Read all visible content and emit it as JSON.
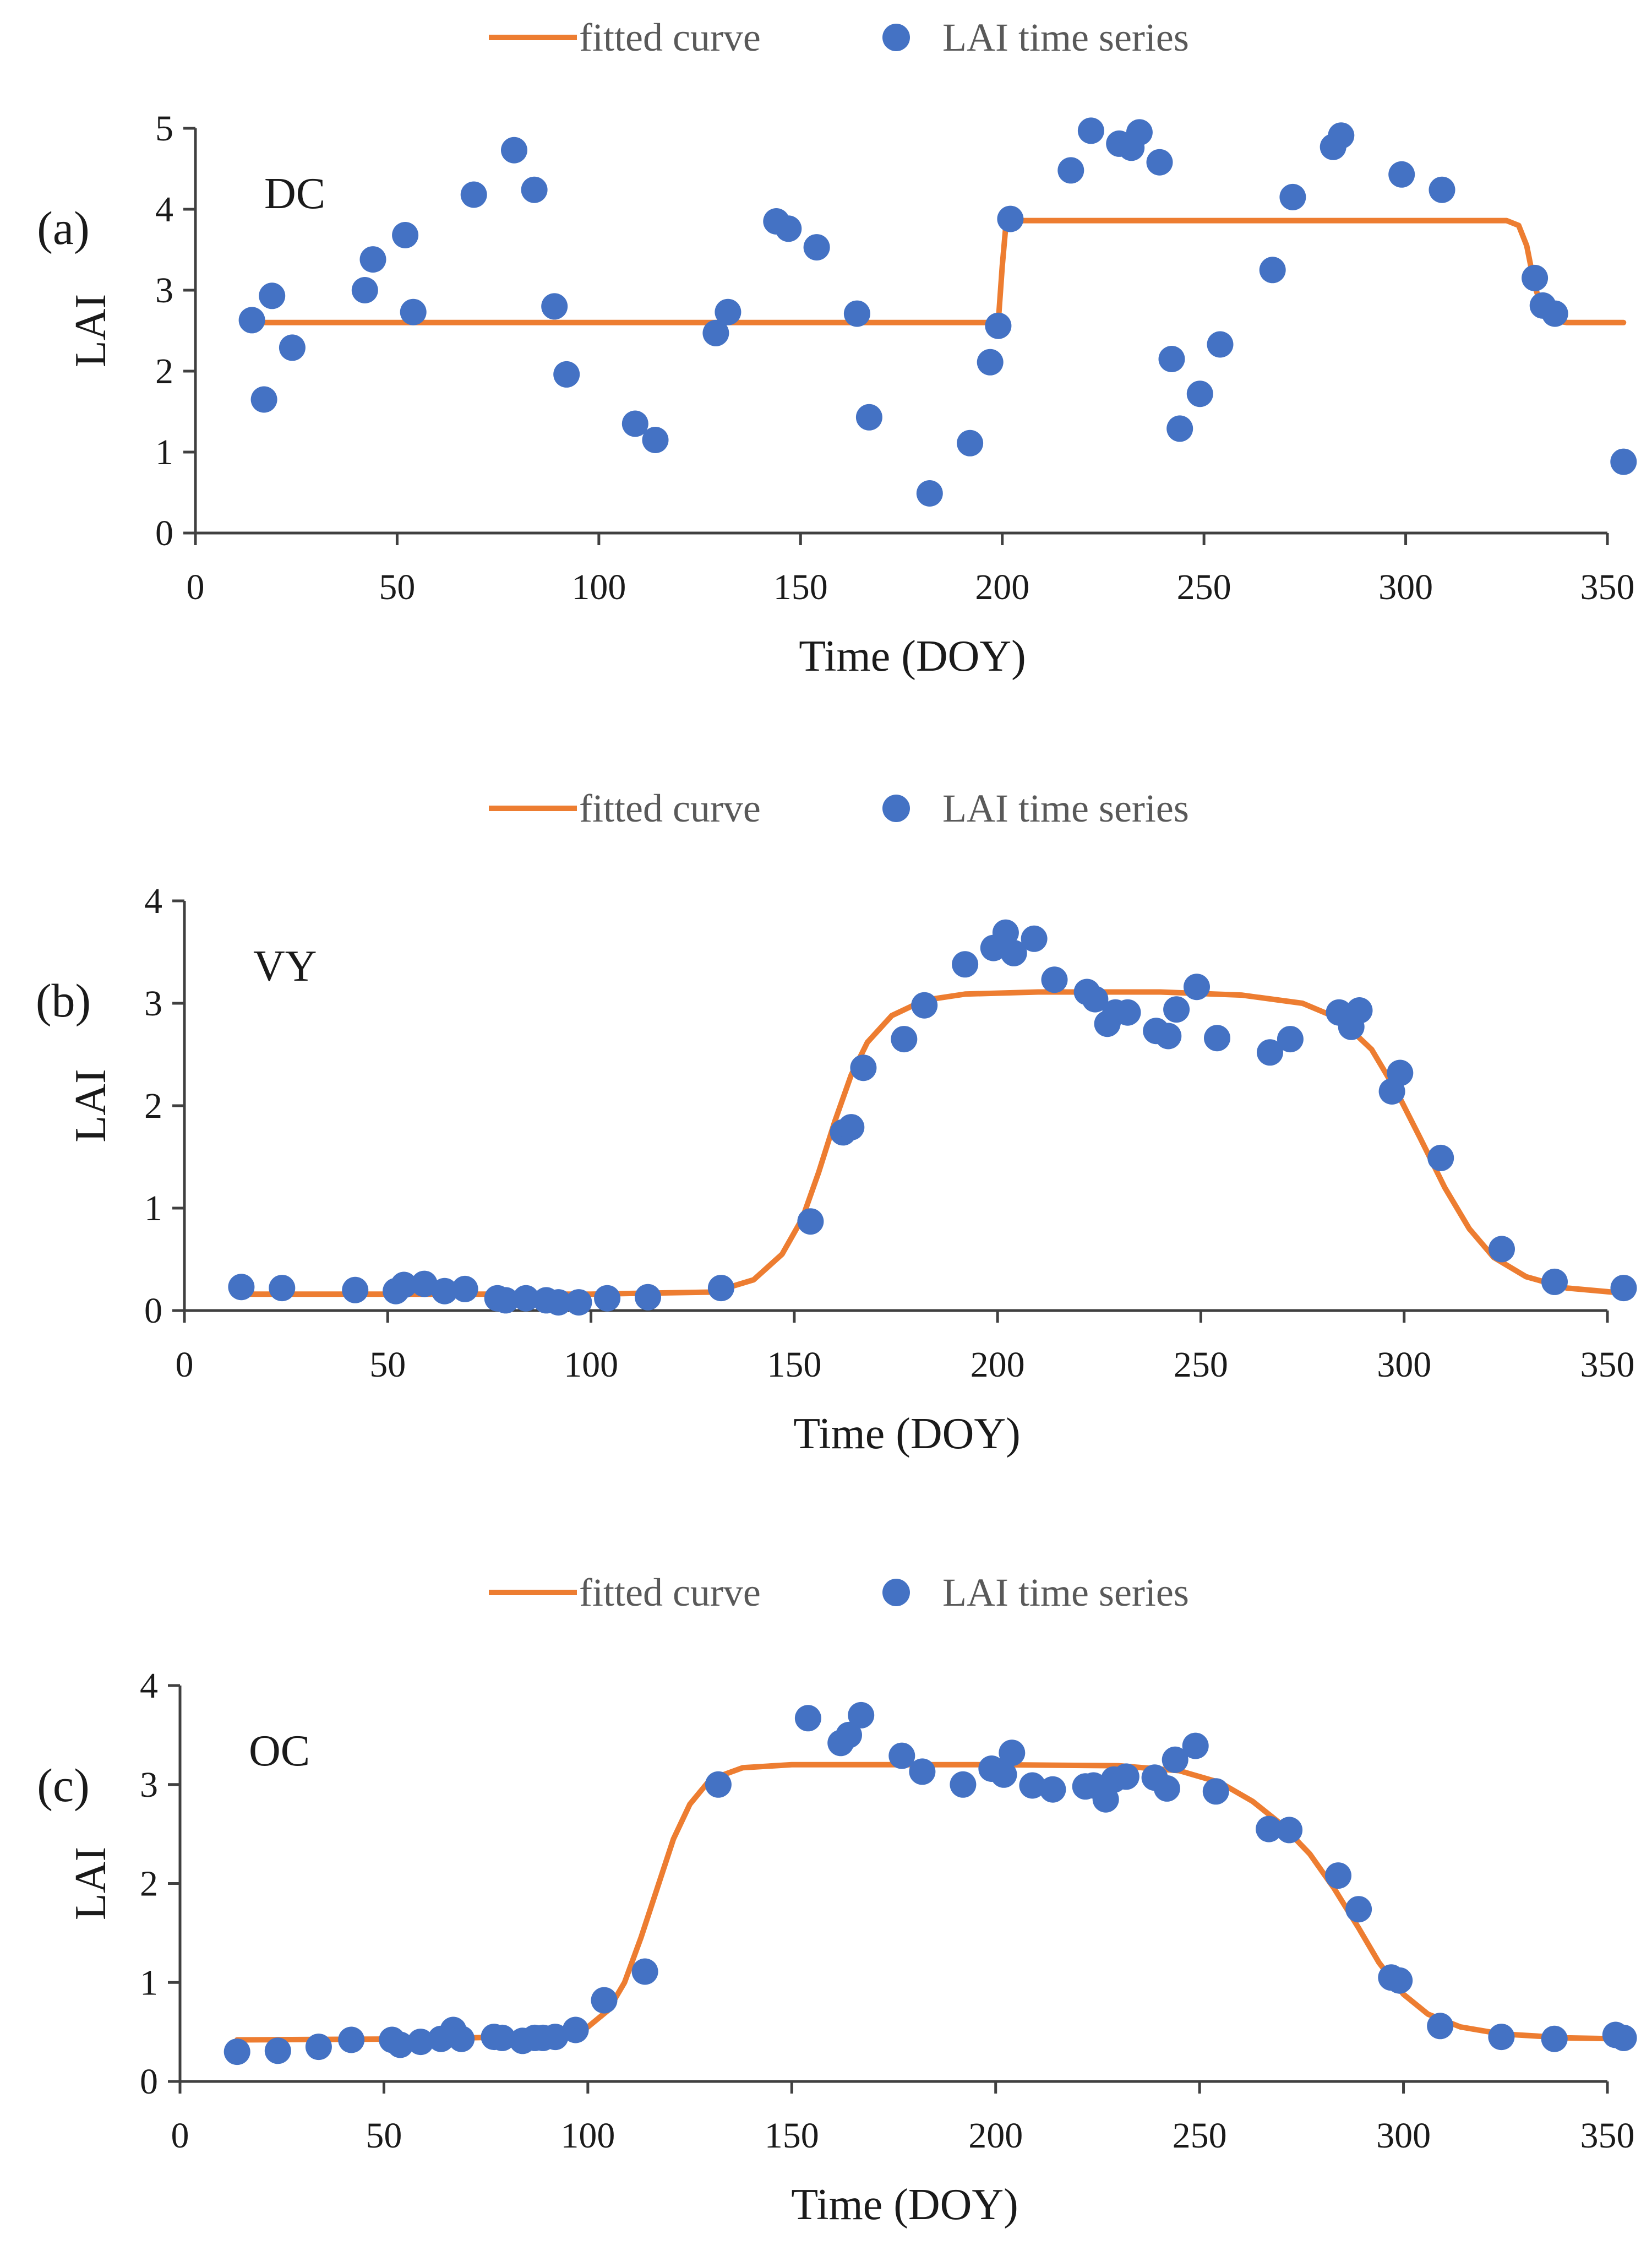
{
  "chart_data": [
    {
      "type": "scatter",
      "panel": "(a)",
      "site": "DC",
      "xlabel": "Time (DOY)",
      "ylabel": "LAI",
      "xlim": [
        0,
        350
      ],
      "ylim": [
        0,
        5
      ],
      "xticks": [
        0,
        50,
        100,
        150,
        200,
        250,
        300,
        350
      ],
      "yticks": [
        0,
        1,
        2,
        3,
        4,
        5
      ],
      "legend": {
        "line_label": "fitted curve",
        "point_label": "LAI time series",
        "placement": "top-center"
      },
      "series": [
        {
          "name": "LAI time series",
          "type": "scatter",
          "points": [
            [
              14,
              2.63
            ],
            [
              17,
              1.65
            ],
            [
              19,
              2.93
            ],
            [
              24,
              2.29
            ],
            [
              42,
              3.0
            ],
            [
              44,
              3.38
            ],
            [
              52,
              3.68
            ],
            [
              54,
              2.73
            ],
            [
              69,
              4.18
            ],
            [
              79,
              4.73
            ],
            [
              84,
              4.24
            ],
            [
              89,
              2.8
            ],
            [
              92,
              1.96
            ],
            [
              109,
              1.35
            ],
            [
              114,
              1.15
            ],
            [
              129,
              2.47
            ],
            [
              132,
              2.73
            ],
            [
              144,
              3.85
            ],
            [
              147,
              3.76
            ],
            [
              154,
              3.53
            ],
            [
              164,
              2.71
            ],
            [
              167,
              1.43
            ],
            [
              182,
              0.49
            ],
            [
              192,
              1.11
            ],
            [
              197,
              2.11
            ],
            [
              199,
              2.56
            ],
            [
              202,
              3.88
            ],
            [
              217,
              4.48
            ],
            [
              222,
              4.97
            ],
            [
              229,
              4.81
            ],
            [
              232,
              4.76
            ],
            [
              234,
              4.95
            ],
            [
              239,
              4.58
            ],
            [
              242,
              2.15
            ],
            [
              244,
              1.29
            ],
            [
              249,
              1.72
            ],
            [
              254,
              2.33
            ],
            [
              267,
              3.25
            ],
            [
              272,
              4.15
            ],
            [
              282,
              4.77
            ],
            [
              284,
              4.91
            ],
            [
              299,
              4.43
            ],
            [
              309,
              4.24
            ],
            [
              332,
              3.15
            ],
            [
              334,
              2.81
            ],
            [
              337,
              2.71
            ],
            [
              354,
              0.88
            ]
          ]
        },
        {
          "name": "fitted curve",
          "type": "line",
          "points": [
            [
              14,
              2.6
            ],
            [
              199,
              2.6
            ],
            [
              200,
              3.3
            ],
            [
              201,
              3.86
            ],
            [
              325,
              3.86
            ],
            [
              328,
              3.8
            ],
            [
              330,
              3.55
            ],
            [
              332,
              3.05
            ],
            [
              334,
              2.75
            ],
            [
              336,
              2.63
            ],
            [
              340,
              2.6
            ],
            [
              354,
              2.6
            ]
          ]
        }
      ]
    },
    {
      "type": "scatter",
      "panel": "(b)",
      "site": "VY",
      "xlabel": "Time (DOY)",
      "ylabel": "LAI",
      "xlim": [
        0,
        350
      ],
      "ylim": [
        0,
        4
      ],
      "xticks": [
        0,
        50,
        100,
        150,
        200,
        250,
        300,
        350
      ],
      "yticks": [
        0,
        1,
        2,
        3,
        4
      ],
      "legend": {
        "line_label": "fitted curve",
        "point_label": "LAI time series",
        "placement": "top-center"
      },
      "series": [
        {
          "name": "LAI time series",
          "type": "scatter",
          "points": [
            [
              14,
              0.23
            ],
            [
              24,
              0.22
            ],
            [
              42,
              0.2
            ],
            [
              52,
              0.19
            ],
            [
              54,
              0.25
            ],
            [
              59,
              0.26
            ],
            [
              64,
              0.19
            ],
            [
              69,
              0.21
            ],
            [
              77,
              0.12
            ],
            [
              79,
              0.1
            ],
            [
              84,
              0.12
            ],
            [
              89,
              0.1
            ],
            [
              92,
              0.08
            ],
            [
              97,
              0.08
            ],
            [
              104,
              0.12
            ],
            [
              114,
              0.13
            ],
            [
              132,
              0.22
            ],
            [
              154,
              0.87
            ],
            [
              162,
              1.74
            ],
            [
              164,
              1.79
            ],
            [
              167,
              2.37
            ],
            [
              177,
              2.65
            ],
            [
              182,
              2.98
            ],
            [
              192,
              3.38
            ],
            [
              199,
              3.54
            ],
            [
              202,
              3.69
            ],
            [
              204,
              3.49
            ],
            [
              209,
              3.63
            ],
            [
              214,
              3.23
            ],
            [
              222,
              3.11
            ],
            [
              224,
              3.04
            ],
            [
              227,
              2.8
            ],
            [
              229,
              2.91
            ],
            [
              232,
              2.91
            ],
            [
              239,
              2.73
            ],
            [
              242,
              2.68
            ],
            [
              244,
              2.94
            ],
            [
              249,
              3.16
            ],
            [
              254,
              2.66
            ],
            [
              267,
              2.52
            ],
            [
              272,
              2.65
            ],
            [
              284,
              2.91
            ],
            [
              287,
              2.77
            ],
            [
              289,
              2.93
            ],
            [
              297,
              2.14
            ],
            [
              299,
              2.32
            ],
            [
              309,
              1.49
            ],
            [
              324,
              0.6
            ],
            [
              337,
              0.28
            ],
            [
              354,
              0.22
            ]
          ]
        },
        {
          "name": "fitted curve",
          "type": "line",
          "points": [
            [
              14,
              0.16
            ],
            [
              60,
              0.16
            ],
            [
              100,
              0.16
            ],
            [
              130,
              0.18
            ],
            [
              140,
              0.3
            ],
            [
              147,
              0.55
            ],
            [
              152,
              0.9
            ],
            [
              156,
              1.35
            ],
            [
              160,
              1.85
            ],
            [
              164,
              2.3
            ],
            [
              168,
              2.62
            ],
            [
              174,
              2.88
            ],
            [
              182,
              3.03
            ],
            [
              192,
              3.09
            ],
            [
              210,
              3.11
            ],
            [
              240,
              3.11
            ],
            [
              260,
              3.08
            ],
            [
              275,
              3.0
            ],
            [
              284,
              2.85
            ],
            [
              292,
              2.55
            ],
            [
              298,
              2.15
            ],
            [
              304,
              1.68
            ],
            [
              310,
              1.2
            ],
            [
              316,
              0.8
            ],
            [
              322,
              0.52
            ],
            [
              330,
              0.33
            ],
            [
              340,
              0.22
            ],
            [
              354,
              0.17
            ]
          ]
        }
      ]
    },
    {
      "type": "scatter",
      "panel": "(c)",
      "site": "OC",
      "xlabel": "Time (DOY)",
      "ylabel": "LAI",
      "xlim": [
        0,
        350
      ],
      "ylim": [
        0,
        4
      ],
      "xticks": [
        0,
        50,
        100,
        150,
        200,
        250,
        300,
        350
      ],
      "yticks": [
        0,
        1,
        2,
        3,
        4
      ],
      "legend": {
        "line_label": "fitted curve",
        "point_label": "LAI time series",
        "placement": "top-center"
      },
      "series": [
        {
          "name": "LAI time series",
          "type": "scatter",
          "points": [
            [
              14,
              0.3
            ],
            [
              24,
              0.31
            ],
            [
              34,
              0.35
            ],
            [
              42,
              0.42
            ],
            [
              52,
              0.42
            ],
            [
              54,
              0.37
            ],
            [
              59,
              0.4
            ],
            [
              64,
              0.43
            ],
            [
              67,
              0.52
            ],
            [
              69,
              0.43
            ],
            [
              77,
              0.45
            ],
            [
              79,
              0.44
            ],
            [
              84,
              0.41
            ],
            [
              87,
              0.44
            ],
            [
              89,
              0.44
            ],
            [
              92,
              0.45
            ],
            [
              97,
              0.52
            ],
            [
              104,
              0.82
            ],
            [
              114,
              1.11
            ],
            [
              132,
              3.0
            ],
            [
              154,
              3.67
            ],
            [
              162,
              3.42
            ],
            [
              164,
              3.5
            ],
            [
              167,
              3.7
            ],
            [
              177,
              3.29
            ],
            [
              182,
              3.13
            ],
            [
              192,
              3.0
            ],
            [
              199,
              3.16
            ],
            [
              202,
              3.1
            ],
            [
              204,
              3.32
            ],
            [
              209,
              2.99
            ],
            [
              214,
              2.95
            ],
            [
              222,
              2.98
            ],
            [
              224,
              2.99
            ],
            [
              227,
              2.85
            ],
            [
              229,
              3.05
            ],
            [
              232,
              3.08
            ],
            [
              239,
              3.07
            ],
            [
              242,
              2.96
            ],
            [
              244,
              3.25
            ],
            [
              249,
              3.39
            ],
            [
              254,
              2.93
            ],
            [
              267,
              2.55
            ],
            [
              272,
              2.54
            ],
            [
              284,
              2.08
            ],
            [
              289,
              1.74
            ],
            [
              297,
              1.05
            ],
            [
              299,
              1.02
            ],
            [
              309,
              0.56
            ],
            [
              324,
              0.45
            ],
            [
              337,
              0.43
            ],
            [
              352,
              0.47
            ],
            [
              354,
              0.44
            ]
          ]
        },
        {
          "name": "fitted curve",
          "type": "line",
          "points": [
            [
              14,
              0.42
            ],
            [
              60,
              0.43
            ],
            [
              90,
              0.46
            ],
            [
              100,
              0.55
            ],
            [
              105,
              0.72
            ],
            [
              109,
              1.0
            ],
            [
              113,
              1.45
            ],
            [
              117,
              1.95
            ],
            [
              121,
              2.45
            ],
            [
              125,
              2.8
            ],
            [
              130,
              3.05
            ],
            [
              138,
              3.17
            ],
            [
              150,
              3.2
            ],
            [
              200,
              3.2
            ],
            [
              230,
              3.19
            ],
            [
              245,
              3.14
            ],
            [
              255,
              3.02
            ],
            [
              263,
              2.83
            ],
            [
              270,
              2.6
            ],
            [
              277,
              2.3
            ],
            [
              283,
              1.95
            ],
            [
              289,
              1.55
            ],
            [
              294,
              1.2
            ],
            [
              300,
              0.88
            ],
            [
              306,
              0.68
            ],
            [
              314,
              0.55
            ],
            [
              324,
              0.48
            ],
            [
              340,
              0.44
            ],
            [
              354,
              0.43
            ]
          ]
        }
      ]
    }
  ],
  "colors": {
    "line": "#ed7d31",
    "points": "#4472c4",
    "axis": "#404040",
    "text": "#1a1a1a",
    "legend_text": "#595959"
  }
}
